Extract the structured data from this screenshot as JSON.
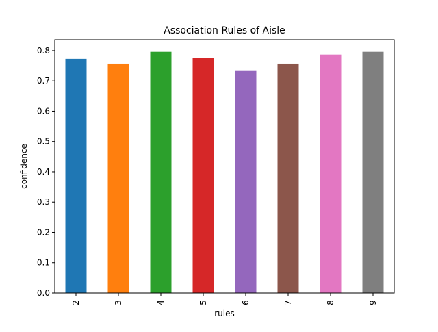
{
  "chart_data": {
    "type": "bar",
    "title": "Association Rules of Aisle",
    "xlabel": "rules",
    "ylabel": "confidence",
    "categories": [
      "2",
      "3",
      "4",
      "5",
      "6",
      "7",
      "8",
      "9"
    ],
    "values": [
      0.773,
      0.757,
      0.796,
      0.775,
      0.735,
      0.757,
      0.787,
      0.796
    ],
    "colors": [
      "#1f77b4",
      "#ff7f0e",
      "#2ca02c",
      "#d62728",
      "#9467bd",
      "#8c564b",
      "#e377c2",
      "#7f7f7f"
    ],
    "ylim": [
      0,
      0.836
    ],
    "yticks": [
      "0.0",
      "0.1",
      "0.2",
      "0.3",
      "0.4",
      "0.5",
      "0.6",
      "0.7",
      "0.8"
    ],
    "grid": false,
    "legend": "none"
  }
}
